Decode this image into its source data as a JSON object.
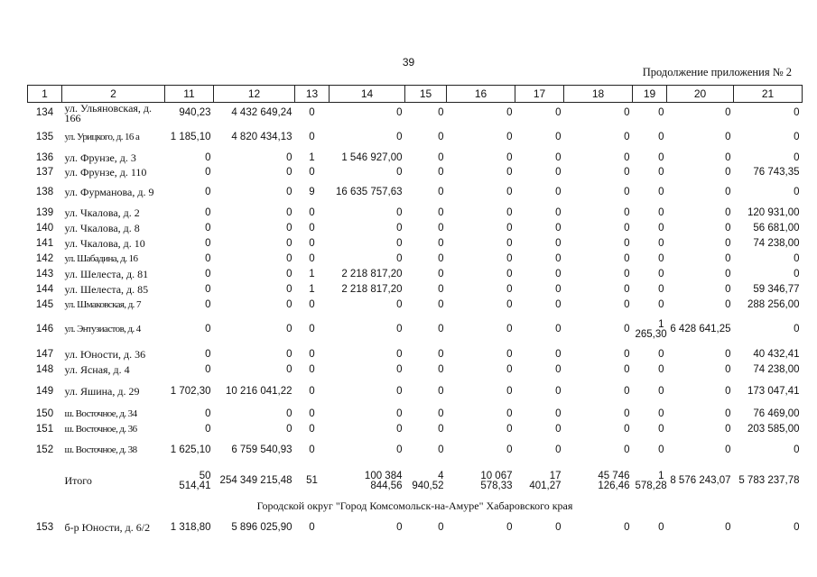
{
  "page_number": "39",
  "appendix_note": "Продолжение приложения № 2",
  "header": [
    "1",
    "2",
    "11",
    "12",
    "13",
    "14",
    "15",
    "16",
    "17",
    "18",
    "19",
    "20",
    "21"
  ],
  "rows": [
    {
      "no": "134",
      "addr": "ул. Ульяновская, д. 166",
      "c11": "940,23",
      "c12": "4 432 649,24",
      "c13": "0",
      "c14": "0",
      "c15": "0",
      "c16": "0",
      "c17": "0",
      "c18": "0",
      "c19": "0",
      "c20": "0",
      "c21": "0"
    },
    {
      "no": "135",
      "addr": "ул. Урицкого, д. 16 а",
      "c11": "1 185,10",
      "c12": "4 820 434,13",
      "c13": "0",
      "c14": "0",
      "c15": "0",
      "c16": "0",
      "c17": "0",
      "c18": "0",
      "c19": "0",
      "c20": "0",
      "c21": "0"
    },
    {
      "no": "136",
      "addr": "ул. Фрунзе, д. 3",
      "c11": "0",
      "c12": "0",
      "c13": "1",
      "c14": "1 546 927,00",
      "c15": "0",
      "c16": "0",
      "c17": "0",
      "c18": "0",
      "c19": "0",
      "c20": "0",
      "c21": "0"
    },
    {
      "no": "137",
      "addr": "ул. Фрунзе, д. 110",
      "c11": "0",
      "c12": "0",
      "c13": "0",
      "c14": "0",
      "c15": "0",
      "c16": "0",
      "c17": "0",
      "c18": "0",
      "c19": "0",
      "c20": "0",
      "c21": "76 743,35"
    },
    {
      "no": "138",
      "addr": "ул. Фурманова, д. 9",
      "c11": "0",
      "c12": "0",
      "c13": "9",
      "c14": "16 635 757,63",
      "c15": "0",
      "c16": "0",
      "c17": "0",
      "c18": "0",
      "c19": "0",
      "c20": "0",
      "c21": "0"
    },
    {
      "no": "139",
      "addr": "ул. Чкалова, д. 2",
      "c11": "0",
      "c12": "0",
      "c13": "0",
      "c14": "0",
      "c15": "0",
      "c16": "0",
      "c17": "0",
      "c18": "0",
      "c19": "0",
      "c20": "0",
      "c21": "120 931,00"
    },
    {
      "no": "140",
      "addr": "ул. Чкалова, д. 8",
      "c11": "0",
      "c12": "0",
      "c13": "0",
      "c14": "0",
      "c15": "0",
      "c16": "0",
      "c17": "0",
      "c18": "0",
      "c19": "0",
      "c20": "0",
      "c21": "56 681,00"
    },
    {
      "no": "141",
      "addr": "ул. Чкалова, д. 10",
      "c11": "0",
      "c12": "0",
      "c13": "0",
      "c14": "0",
      "c15": "0",
      "c16": "0",
      "c17": "0",
      "c18": "0",
      "c19": "0",
      "c20": "0",
      "c21": "74 238,00"
    },
    {
      "no": "142",
      "addr": "ул. Шабадина, д. 16",
      "c11": "0",
      "c12": "0",
      "c13": "0",
      "c14": "0",
      "c15": "0",
      "c16": "0",
      "c17": "0",
      "c18": "0",
      "c19": "0",
      "c20": "0",
      "c21": "0"
    },
    {
      "no": "143",
      "addr": "ул. Шелеста, д. 81",
      "c11": "0",
      "c12": "0",
      "c13": "1",
      "c14": "2 218 817,20",
      "c15": "0",
      "c16": "0",
      "c17": "0",
      "c18": "0",
      "c19": "0",
      "c20": "0",
      "c21": "0"
    },
    {
      "no": "144",
      "addr": "ул. Шелеста, д. 85",
      "c11": "0",
      "c12": "0",
      "c13": "1",
      "c14": "2 218 817,20",
      "c15": "0",
      "c16": "0",
      "c17": "0",
      "c18": "0",
      "c19": "0",
      "c20": "0",
      "c21": "59 346,77"
    },
    {
      "no": "145",
      "addr": "ул. Шмаковская, д. 7",
      "c11": "0",
      "c12": "0",
      "c13": "0",
      "c14": "0",
      "c15": "0",
      "c16": "0",
      "c17": "0",
      "c18": "0",
      "c19": "0",
      "c20": "0",
      "c21": "288 256,00"
    },
    {
      "no": "146",
      "addr": "ул. Энтузиастов, д. 4",
      "c11": "0",
      "c12": "0",
      "c13": "0",
      "c14": "0",
      "c15": "0",
      "c16": "0",
      "c17": "0",
      "c18": "0",
      "c19": "1 265,30",
      "c20": "6 428 641,25",
      "c21": "0"
    },
    {
      "no": "147",
      "addr": "ул. Юности, д. 36",
      "c11": "0",
      "c12": "0",
      "c13": "0",
      "c14": "0",
      "c15": "0",
      "c16": "0",
      "c17": "0",
      "c18": "0",
      "c19": "0",
      "c20": "0",
      "c21": "40 432,41"
    },
    {
      "no": "148",
      "addr": "ул. Ясная, д. 4",
      "c11": "0",
      "c12": "0",
      "c13": "0",
      "c14": "0",
      "c15": "0",
      "c16": "0",
      "c17": "0",
      "c18": "0",
      "c19": "0",
      "c20": "0",
      "c21": "74 238,00"
    },
    {
      "no": "149",
      "addr": "ул. Яшина, д. 29",
      "c11": "1 702,30",
      "c12": "10 216 041,22",
      "c13": "0",
      "c14": "0",
      "c15": "0",
      "c16": "0",
      "c17": "0",
      "c18": "0",
      "c19": "0",
      "c20": "0",
      "c21": "173 047,41"
    },
    {
      "no": "150",
      "addr": "ш. Восточное, д. 34",
      "c11": "0",
      "c12": "0",
      "c13": "0",
      "c14": "0",
      "c15": "0",
      "c16": "0",
      "c17": "0",
      "c18": "0",
      "c19": "0",
      "c20": "0",
      "c21": "76 469,00"
    },
    {
      "no": "151",
      "addr": "ш. Восточное, д. 36",
      "c11": "0",
      "c12": "0",
      "c13": "0",
      "c14": "0",
      "c15": "0",
      "c16": "0",
      "c17": "0",
      "c18": "0",
      "c19": "0",
      "c20": "0",
      "c21": "203 585,00"
    },
    {
      "no": "152",
      "addr": "ш. Восточное, д. 38",
      "c11": "1 625,10",
      "c12": "6 759 540,93",
      "c13": "0",
      "c14": "0",
      "c15": "0",
      "c16": "0",
      "c17": "0",
      "c18": "0",
      "c19": "0",
      "c20": "0",
      "c21": "0"
    }
  ],
  "total": {
    "label": "Итого",
    "c11": "50 514,41",
    "c12": "254 349 215,48",
    "c13": "51",
    "c14": "100 384 844,56",
    "c15": "4 940,52",
    "c16": "10 067 578,33",
    "c17": "17 401,27",
    "c18": "45 746 126,46",
    "c19": "1 578,28",
    "c20": "8 576 243,07",
    "c21": "5 783 237,78"
  },
  "section_title": "Городской округ \"Город Комсомольск-на-Амуре\" Хабаровского края",
  "rows2": [
    {
      "no": "153",
      "addr": "б-р Юности, д. 6/2",
      "c11": "1 318,80",
      "c12": "5 896 025,90",
      "c13": "0",
      "c14": "0",
      "c15": "0",
      "c16": "0",
      "c17": "0",
      "c18": "0",
      "c19": "0",
      "c20": "0",
      "c21": "0"
    }
  ]
}
